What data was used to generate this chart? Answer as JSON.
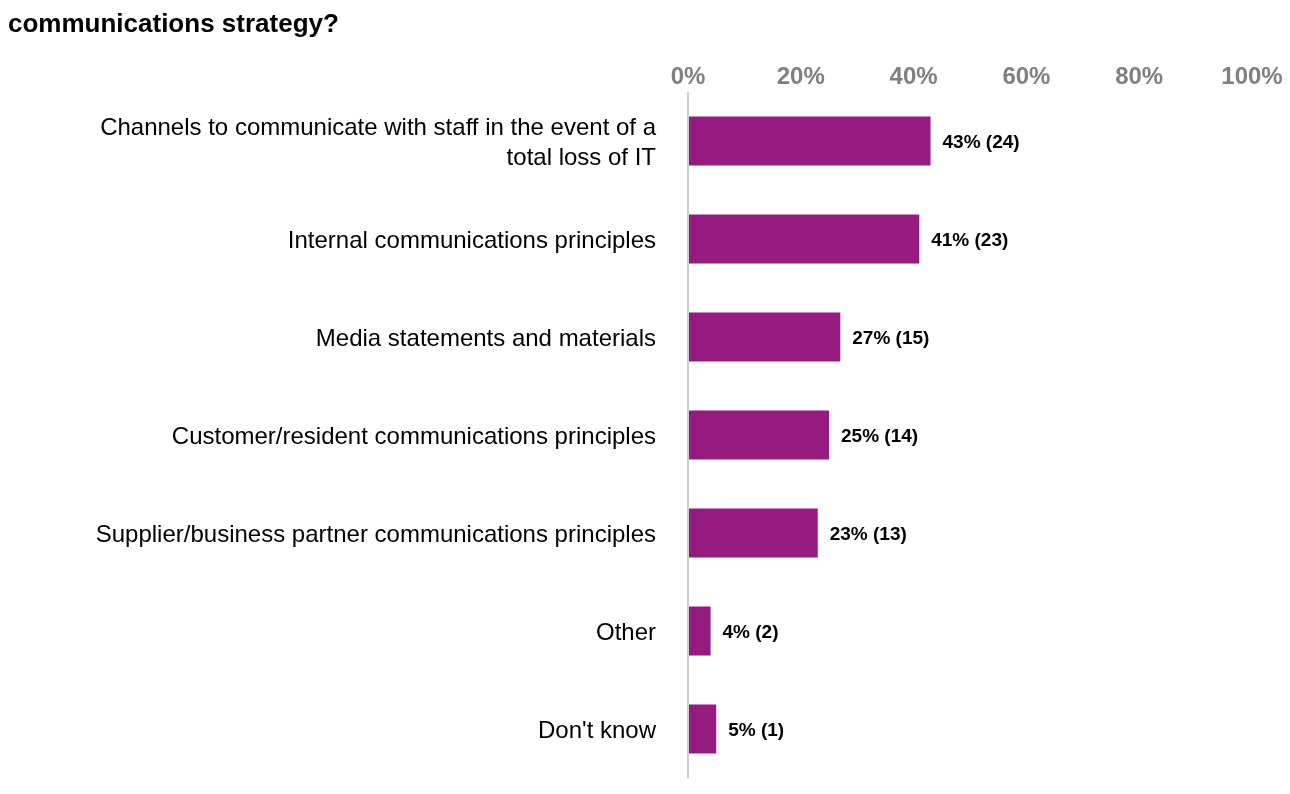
{
  "chart_data": {
    "type": "bar",
    "orientation": "horizontal",
    "title": "communications strategy?",
    "categories": [
      "Channels to communicate with staff in the event of a total loss of IT",
      "Internal communications principles",
      "Media statements and materials",
      "Customer/resident communications principles",
      "Supplier/business partner communications principles",
      "Other",
      "Don't know"
    ],
    "values": [
      43,
      41,
      27,
      25,
      23,
      4,
      5
    ],
    "value_labels": [
      "43% (24)",
      "41% (23)",
      "27% (15)",
      "25% (14)",
      "23% (13)",
      "4% (2)",
      "5% (1)"
    ],
    "color": "#951b81",
    "xlim": [
      0,
      100
    ],
    "xticks": [
      {
        "value": 0,
        "label": "0%"
      },
      {
        "value": 20,
        "label": "20%"
      },
      {
        "value": 40,
        "label": "40%"
      },
      {
        "value": 60,
        "label": "60%"
      },
      {
        "value": 80,
        "label": "80%"
      },
      {
        "value": 100,
        "label": "100%"
      }
    ],
    "grid": false,
    "legend": false
  }
}
